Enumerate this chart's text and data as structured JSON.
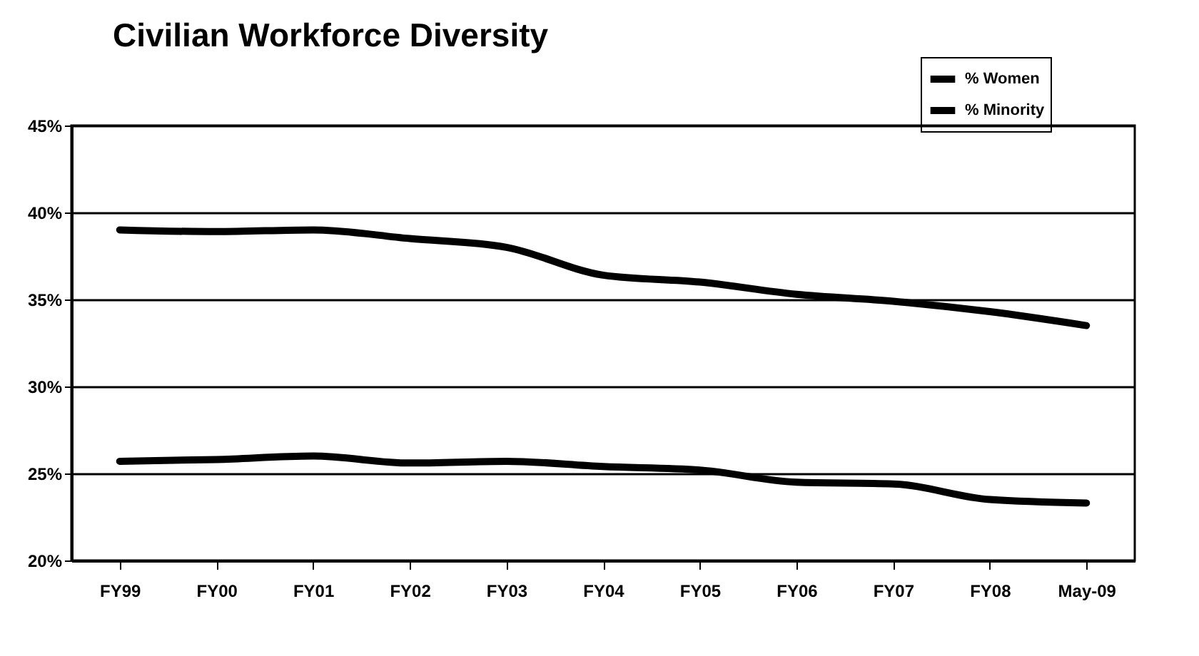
{
  "chart_data": {
    "type": "line",
    "title": "Civilian Workforce Diversity",
    "categories": [
      "FY99",
      "FY00",
      "FY01",
      "FY02",
      "FY03",
      "FY04",
      "FY05",
      "FY06",
      "FY07",
      "FY08",
      "May-09"
    ],
    "series": [
      {
        "name": "% Women",
        "color": "#000000",
        "values": [
          39.0,
          38.9,
          39.0,
          38.5,
          38.0,
          36.4,
          36.0,
          35.3,
          34.9,
          34.3,
          33.5
        ]
      },
      {
        "name": "% Minority",
        "color": "#000000",
        "values": [
          25.7,
          25.8,
          26.0,
          25.6,
          25.7,
          25.4,
          25.2,
          24.5,
          24.4,
          23.5,
          23.3
        ]
      }
    ],
    "ylim": [
      20,
      45
    ],
    "yticks": [
      {
        "value": 20,
        "label": "20%"
      },
      {
        "value": 25,
        "label": "25%"
      },
      {
        "value": 30,
        "label": "30%"
      },
      {
        "value": 35,
        "label": "35%"
      },
      {
        "value": 40,
        "label": "40%"
      },
      {
        "value": 45,
        "label": "45%"
      }
    ],
    "grid": "y",
    "legend": "top right",
    "marker": "none",
    "line_style": "solid"
  }
}
